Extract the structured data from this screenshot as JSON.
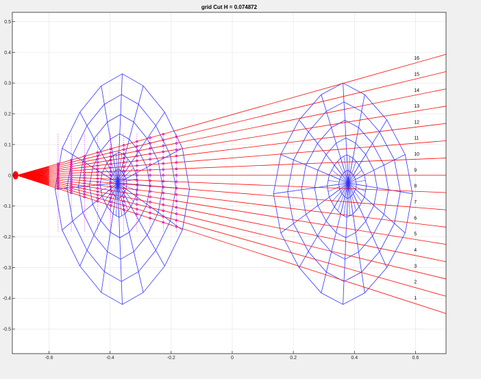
{
  "chart_data": {
    "type": "line",
    "title": "grid Cut H = 0.074872",
    "xlabel": "",
    "ylabel": "",
    "xlim": [
      -0.72,
      0.7
    ],
    "ylim": [
      -0.58,
      0.53
    ],
    "x_ticks": [
      -0.6,
      -0.4,
      -0.2,
      0,
      0.2,
      0.4,
      0.6
    ],
    "x_tick_labels": [
      "-0.6",
      "-0.4",
      "-0.2",
      "0",
      "0.2",
      "0.4",
      "0.6"
    ],
    "y_ticks": [
      0.5,
      0.4,
      0.3,
      0.2,
      0.1,
      0,
      -0.1,
      -0.2,
      -0.3,
      -0.4,
      -0.5
    ],
    "y_tick_labels": [
      "0.5",
      "0.4",
      "0.3",
      "0.2",
      "0.1",
      "0",
      "-0.1",
      "-0.2",
      "-0.3",
      "-0.4",
      "-0.5"
    ],
    "grid": true,
    "colors": {
      "rays": "#ff0000",
      "mesh": "#3333ff",
      "points": "#cc00cc",
      "background": "#f0f0f0",
      "axes_bg": "#ffffff",
      "grid": "#e6e6e6"
    },
    "source_point": [
      -0.705,
      0
    ],
    "rays": {
      "x_start": -0.705,
      "x_end": 0.7,
      "slopes": [
        -0.32,
        -0.28,
        -0.24,
        -0.2,
        -0.16,
        -0.12,
        -0.08,
        -0.04,
        0,
        0.04,
        0.08,
        0.12,
        0.16,
        0.2,
        0.24,
        0.28
      ],
      "labels": [
        "1",
        "2",
        "3",
        "4",
        "5",
        "6",
        "7",
        "8",
        "9",
        "10",
        "11",
        "12",
        "13",
        "14",
        "15",
        "16"
      ],
      "label_x": 0.595
    },
    "lenses": [
      {
        "name": "",
        "center": [
          -0.375,
          -0.025
        ],
        "x_left": -0.58,
        "x_right": -0.14,
        "y_top": 0.33,
        "y_bottom": -0.42,
        "rings": 6,
        "spokes": 16,
        "marked": true
      },
      {
        "name": "",
        "center": [
          0.38,
          -0.025
        ],
        "x_left": 0.135,
        "x_right": 0.59,
        "y_top": 0.3,
        "y_bottom": -0.42,
        "rings": 6,
        "spokes": 16,
        "marked": false
      }
    ]
  }
}
